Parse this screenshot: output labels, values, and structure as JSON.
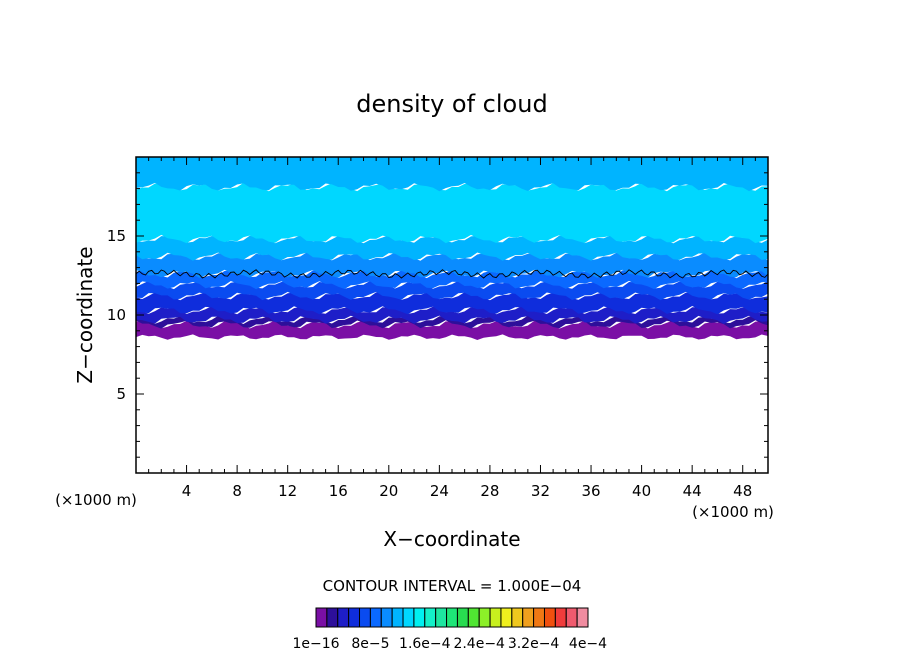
{
  "chart_data": {
    "type": "heatmap",
    "title": "density of cloud",
    "xlabel": "X−coordinate",
    "ylabel": "Z−coordinate",
    "x_unit_left": "(×1000 m)",
    "x_unit_right": "(×1000 m)",
    "xlim": [
      0,
      50
    ],
    "ylim": [
      0,
      20
    ],
    "x_ticks": [
      4,
      8,
      12,
      16,
      20,
      24,
      28,
      32,
      36,
      40,
      44,
      48
    ],
    "y_ticks": [
      5,
      10,
      15
    ],
    "x_minor_step": 1,
    "y_minor_step": 1,
    "contour_interval_label": "CONTOUR INTERVAL = 1.000E−04",
    "colorbar": {
      "colors": [
        "#7a0fa5",
        "#2d0f9a",
        "#1e1ec8",
        "#0f2ddc",
        "#0a4bf0",
        "#0a69ff",
        "#0a8cff",
        "#00b4ff",
        "#00d7ff",
        "#00f0f0",
        "#14f0c8",
        "#1ee6a0",
        "#1ee678",
        "#28dc50",
        "#50e632",
        "#8cf028",
        "#c8f01e",
        "#f0f01e",
        "#f0c81e",
        "#f0a01e",
        "#f07814",
        "#f0500f",
        "#f03c3c",
        "#f05a6e",
        "#f08ca0"
      ],
      "labels": [
        "1e−16",
        "8e−5",
        "1.6e−4",
        "2.4e−4",
        "3.2e−4",
        "4e−4"
      ]
    },
    "layers": [
      {
        "z_bottom": 8.6,
        "z_top": 9.4,
        "color": "#7a0fa5"
      },
      {
        "z_bottom": 9.4,
        "z_top": 9.7,
        "color": "#2d0f9a"
      },
      {
        "z_bottom": 9.7,
        "z_top": 10.3,
        "color": "#1e1ec8"
      },
      {
        "z_bottom": 10.3,
        "z_top": 11.2,
        "color": "#0f2ddc"
      },
      {
        "z_bottom": 11.2,
        "z_top": 11.9,
        "color": "#0a4bf0"
      },
      {
        "z_bottom": 11.9,
        "z_top": 12.6,
        "color": "#0a69ff"
      },
      {
        "z_bottom": 12.6,
        "z_top": 13.7,
        "color": "#0a8cff"
      },
      {
        "z_bottom": 13.7,
        "z_top": 14.8,
        "color": "#00b4ff"
      },
      {
        "z_bottom": 14.8,
        "z_top": 18.1,
        "color": "#00d7ff"
      },
      {
        "z_bottom": 18.1,
        "z_top": 20.0,
        "color": "#00b4ff"
      }
    ],
    "contour_line_z": 12.6,
    "grid": false
  }
}
